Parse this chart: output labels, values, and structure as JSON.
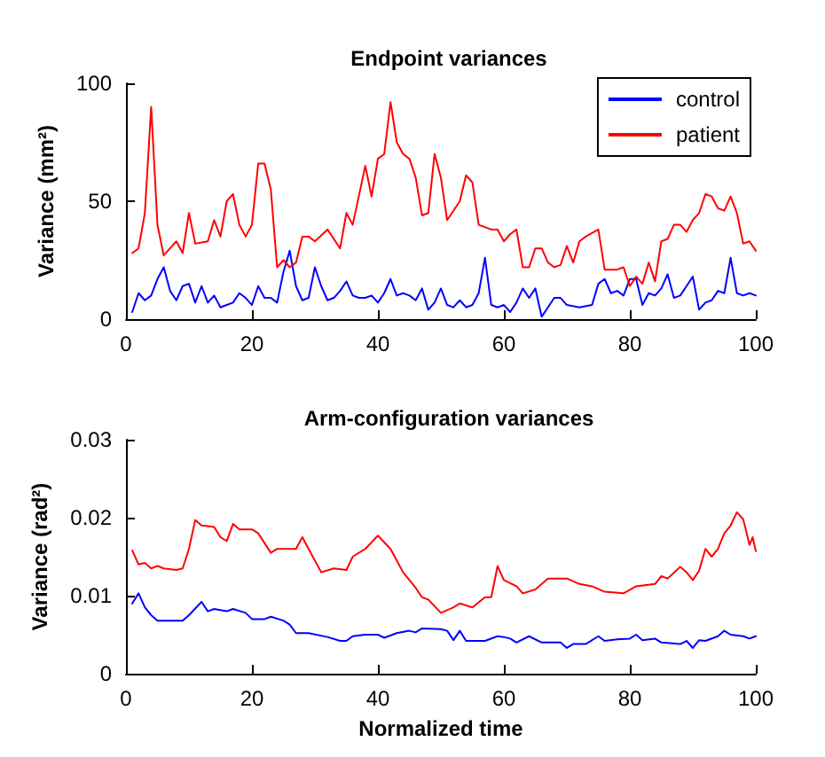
{
  "chart_data": [
    {
      "type": "line",
      "title": "Endpoint variances",
      "ylabel": "Variance (mm²)",
      "xlim": [
        0,
        100
      ],
      "xticks": [
        0,
        20,
        40,
        60,
        80,
        100
      ],
      "ylim": [
        0,
        100
      ],
      "yticks": [
        0,
        50,
        100
      ],
      "grid": false,
      "legend": "top right",
      "marker": "none",
      "line_style": "solid",
      "series": [
        {
          "name": "control",
          "color": "#0000ff",
          "x": [
            1,
            2,
            3,
            4,
            5,
            6,
            7,
            8,
            9,
            10,
            11,
            12,
            13,
            14,
            15,
            16,
            17,
            18,
            19,
            20,
            21,
            22,
            23,
            24,
            25,
            26,
            27,
            28,
            29,
            30,
            31,
            32,
            33,
            34,
            35,
            36,
            37,
            38,
            39,
            40,
            41,
            42,
            43,
            44,
            45,
            46,
            47,
            48,
            49,
            50,
            51,
            52,
            53,
            54,
            55,
            56,
            57,
            58,
            59,
            60,
            61,
            62,
            63,
            64,
            65,
            66,
            67,
            68,
            69,
            70,
            72,
            74,
            75,
            76,
            77,
            78,
            79,
            80,
            81,
            82,
            83,
            84,
            85,
            86,
            87,
            88,
            89,
            90,
            91,
            92,
            93,
            94,
            95,
            96,
            97,
            98,
            99,
            100
          ],
          "values": [
            3,
            11,
            8,
            10,
            17,
            22,
            12,
            8,
            14,
            15,
            7,
            14,
            7,
            10,
            5,
            6,
            7,
            11,
            9,
            6,
            14,
            9,
            9,
            7,
            20,
            29,
            14,
            8,
            9,
            22,
            14,
            8,
            9,
            12,
            16,
            10,
            9,
            9,
            10,
            7,
            11,
            17,
            10,
            11,
            10,
            8,
            13,
            4,
            7,
            13,
            6,
            5,
            8,
            5,
            6,
            11,
            26,
            6,
            5,
            6,
            3,
            7,
            13,
            9,
            13,
            1,
            5,
            9,
            9,
            6,
            5,
            6,
            15,
            17,
            11,
            12,
            10,
            17,
            17,
            6,
            11,
            10,
            13,
            19,
            9,
            10,
            14,
            18,
            4,
            7,
            8,
            12,
            11,
            26,
            11,
            10,
            11,
            10
          ]
        },
        {
          "name": "patient",
          "color": "#ff0000",
          "x": [
            1,
            2,
            3,
            4,
            5,
            6,
            7,
            8,
            9,
            10,
            11,
            13,
            14,
            15,
            16,
            17,
            18,
            19,
            20,
            21,
            22,
            23,
            24,
            25,
            26,
            27,
            28,
            29,
            30,
            32,
            34,
            35,
            36,
            38,
            39,
            40,
            41,
            42,
            43,
            44,
            45,
            46,
            47,
            48,
            49,
            50,
            51,
            53,
            54,
            55,
            56,
            58,
            59,
            60,
            61,
            62,
            63,
            64,
            65,
            66,
            67,
            68,
            69,
            70,
            71,
            72,
            73,
            75,
            76,
            78,
            79,
            80,
            81,
            82,
            83,
            84,
            85,
            86,
            87,
            88,
            89,
            90,
            91,
            92,
            93,
            94,
            95,
            96,
            97,
            98,
            99,
            100
          ],
          "values": [
            28,
            30,
            45,
            90,
            40,
            27,
            30,
            33,
            28,
            45,
            32,
            33,
            42,
            35,
            50,
            53,
            40,
            35,
            40,
            66,
            66,
            55,
            22,
            25,
            22,
            24,
            35,
            35,
            33,
            38,
            30,
            45,
            40,
            65,
            52,
            68,
            70,
            92,
            75,
            70,
            68,
            60,
            44,
            45,
            70,
            60,
            42,
            50,
            61,
            58,
            40,
            38,
            38,
            33,
            36,
            38,
            22,
            22,
            30,
            30,
            24,
            22,
            23,
            31,
            24,
            33,
            35,
            38,
            21,
            21,
            22,
            14,
            18,
            15,
            24,
            16,
            33,
            34,
            40,
            40,
            37,
            42,
            45,
            53,
            52,
            47,
            46,
            52,
            45,
            32,
            33,
            29
          ]
        }
      ]
    },
    {
      "type": "line",
      "title": "Arm-configuration variances",
      "xlabel": "Normalized time",
      "ylabel": "Variance (rad²)",
      "xlim": [
        0,
        100
      ],
      "xticks": [
        0,
        20,
        40,
        60,
        80,
        100
      ],
      "ylim": [
        0,
        0.03
      ],
      "yticks": [
        0,
        0.01,
        0.02,
        0.03
      ],
      "grid": false,
      "marker": "none",
      "line_style": "solid",
      "series": [
        {
          "color": "#0000ff",
          "x": [
            1,
            2,
            3,
            4,
            5,
            7,
            9,
            10,
            12,
            13,
            14,
            16,
            17,
            19,
            20,
            22,
            23,
            25,
            26,
            27,
            29,
            32,
            34,
            35,
            36,
            38,
            40,
            41,
            43,
            45,
            46,
            47,
            50,
            51,
            52,
            53,
            54,
            57,
            59,
            60,
            61,
            62,
            64,
            66,
            69,
            70,
            71,
            73,
            75,
            76,
            78,
            80,
            81,
            82,
            84,
            85,
            88,
            89,
            90,
            91,
            92,
            94,
            95,
            96,
            98,
            99,
            100
          ],
          "values": [
            0.009,
            0.0103,
            0.0085,
            0.0075,
            0.0068,
            0.0068,
            0.0068,
            0.0075,
            0.0092,
            0.008,
            0.0083,
            0.008,
            0.0083,
            0.0078,
            0.007,
            0.007,
            0.0073,
            0.0068,
            0.0063,
            0.0052,
            0.0052,
            0.0047,
            0.0042,
            0.0042,
            0.0048,
            0.005,
            0.005,
            0.0046,
            0.0052,
            0.0055,
            0.0053,
            0.0058,
            0.0057,
            0.0055,
            0.0043,
            0.0055,
            0.0042,
            0.0042,
            0.0048,
            0.0047,
            0.0045,
            0.004,
            0.0048,
            0.004,
            0.004,
            0.0033,
            0.0038,
            0.0038,
            0.0048,
            0.0042,
            0.0044,
            0.0045,
            0.005,
            0.0043,
            0.0045,
            0.004,
            0.0038,
            0.0042,
            0.0033,
            0.0043,
            0.0042,
            0.0048,
            0.0055,
            0.005,
            0.0048,
            0.0045,
            0.0048
          ]
        },
        {
          "color": "#ff0000",
          "x": [
            1,
            2,
            3,
            4,
            5,
            6,
            8,
            9,
            10,
            11,
            12,
            14,
            15,
            16,
            17,
            18,
            20,
            21,
            23,
            24,
            27,
            28,
            29,
            31,
            33,
            35,
            36,
            38,
            40,
            42,
            44,
            46,
            47,
            48,
            50,
            52,
            53,
            55,
            57,
            58,
            59,
            60,
            62,
            63,
            65,
            67,
            70,
            72,
            74,
            76,
            79,
            81,
            84,
            85,
            86,
            88,
            89,
            90,
            91,
            92,
            93,
            94,
            95,
            96,
            97,
            98,
            99,
            99.5,
            100
          ],
          "values": [
            0.0158,
            0.014,
            0.0142,
            0.0135,
            0.0138,
            0.0135,
            0.0133,
            0.0135,
            0.016,
            0.0197,
            0.019,
            0.0188,
            0.0175,
            0.017,
            0.0192,
            0.0185,
            0.0185,
            0.018,
            0.0155,
            0.016,
            0.016,
            0.0175,
            0.016,
            0.013,
            0.0135,
            0.0133,
            0.015,
            0.016,
            0.0177,
            0.016,
            0.013,
            0.011,
            0.0098,
            0.0095,
            0.0078,
            0.0085,
            0.009,
            0.0085,
            0.0098,
            0.0098,
            0.0138,
            0.012,
            0.0112,
            0.0103,
            0.0108,
            0.0122,
            0.0122,
            0.0115,
            0.0112,
            0.0105,
            0.0103,
            0.0112,
            0.0115,
            0.0125,
            0.0122,
            0.0137,
            0.013,
            0.012,
            0.0132,
            0.016,
            0.015,
            0.016,
            0.018,
            0.019,
            0.0207,
            0.0198,
            0.0165,
            0.0175,
            0.0157
          ]
        }
      ]
    }
  ]
}
